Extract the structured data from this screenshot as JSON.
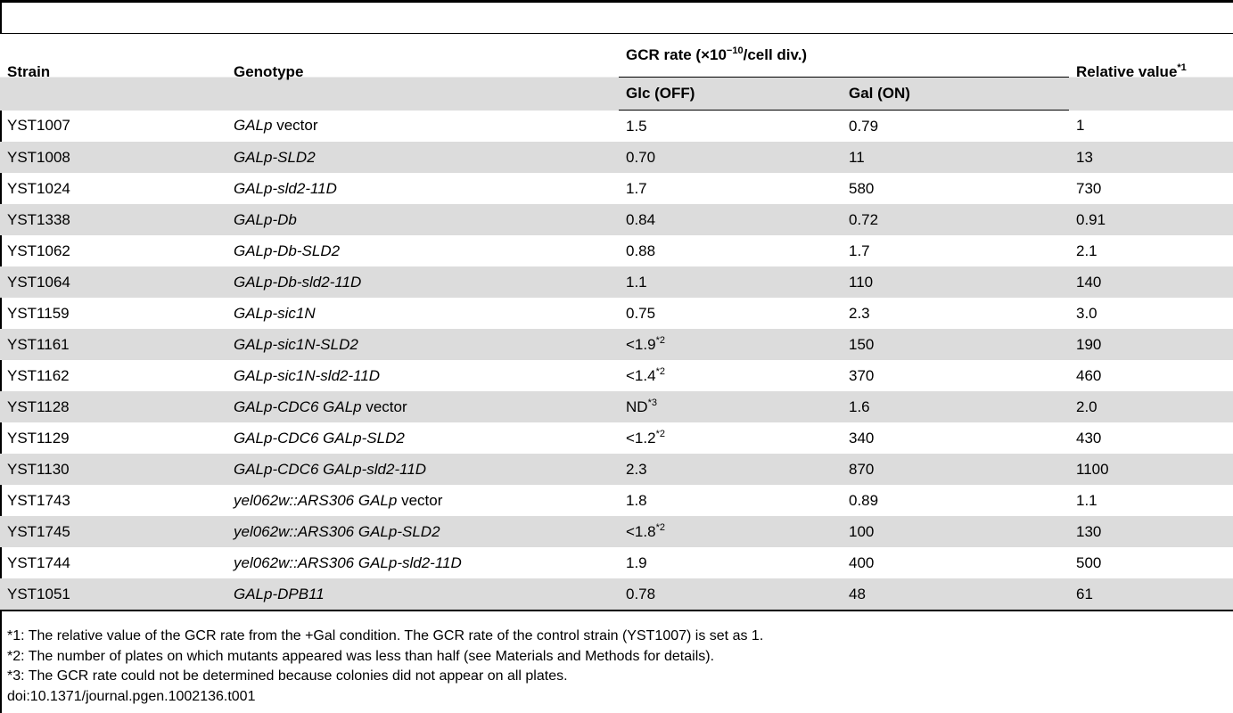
{
  "headers": {
    "strain": "Strain",
    "genotype": "Genotype",
    "gcr_rate": "GCR rate (×10",
    "gcr_rate_exp": "−10",
    "gcr_rate_unit": "/cell div.)",
    "relative": "Relative value",
    "relative_note": "*1",
    "glc": "Glc (OFF)",
    "gal": "Gal (ON)"
  },
  "rows": [
    {
      "strain": "YST1007",
      "geno_italic": "GALp",
      "geno_roman": " vector",
      "geno_italic2": "",
      "glc": "1.5",
      "glc_note": "",
      "gal": "0.79",
      "relative": "1"
    },
    {
      "strain": "YST1008",
      "geno_italic": "GALp-SLD2",
      "geno_roman": "",
      "geno_italic2": "",
      "glc": "0.70",
      "glc_note": "",
      "gal": "11",
      "relative": "13"
    },
    {
      "strain": "YST1024",
      "geno_italic": "GALp-sld2-11D",
      "geno_roman": "",
      "geno_italic2": "",
      "glc": "1.7",
      "glc_note": "",
      "gal": "580",
      "relative": "730"
    },
    {
      "strain": "YST1338",
      "geno_italic": "GALp-Db",
      "geno_roman": "",
      "geno_italic2": "",
      "glc": "0.84",
      "glc_note": "",
      "gal": "0.72",
      "relative": "0.91"
    },
    {
      "strain": "YST1062",
      "geno_italic": "GALp-Db-SLD2",
      "geno_roman": "",
      "geno_italic2": "",
      "glc": "0.88",
      "glc_note": "",
      "gal": "1.7",
      "relative": "2.1"
    },
    {
      "strain": "YST1064",
      "geno_italic": "GALp-Db-sld2-11D",
      "geno_roman": "",
      "geno_italic2": "",
      "glc": "1.1",
      "glc_note": "",
      "gal": "110",
      "relative": "140"
    },
    {
      "strain": "YST1159",
      "geno_italic": "GALp-sic1N",
      "geno_roman": "",
      "geno_italic2": "",
      "glc": "0.75",
      "glc_note": "",
      "gal": "2.3",
      "relative": "3.0"
    },
    {
      "strain": "YST1161",
      "geno_italic": "GALp-sic1N-SLD2",
      "geno_roman": "",
      "geno_italic2": "",
      "glc": "<1.9",
      "glc_note": "*2",
      "gal": "150",
      "relative": "190"
    },
    {
      "strain": "YST1162",
      "geno_italic": "GALp-sic1N-sld2-11D",
      "geno_roman": "",
      "geno_italic2": "",
      "glc": "<1.4",
      "glc_note": "*2",
      "gal": "370",
      "relative": "460"
    },
    {
      "strain": "YST1128",
      "geno_italic": "GALp-CDC6 GALp",
      "geno_roman": " vector",
      "geno_italic2": "",
      "glc": "ND",
      "glc_note": "*3",
      "gal": "1.6",
      "relative": "2.0"
    },
    {
      "strain": "YST1129",
      "geno_italic": "GALp-CDC6 GALp-SLD2",
      "geno_roman": "",
      "geno_italic2": "",
      "glc": "<1.2",
      "glc_note": "*2",
      "gal": "340",
      "relative": "430"
    },
    {
      "strain": "YST1130",
      "geno_italic": "GALp-CDC6 GALp-sld2-11D",
      "geno_roman": "",
      "geno_italic2": "",
      "glc": "2.3",
      "glc_note": "",
      "gal": "870",
      "relative": "1100"
    },
    {
      "strain": "YST1743",
      "geno_italic": "yel062w::ARS306 GALp",
      "geno_roman": " vector",
      "geno_italic2": "",
      "glc": "1.8",
      "glc_note": "",
      "gal": "0.89",
      "relative": "1.1"
    },
    {
      "strain": "YST1745",
      "geno_italic": "yel062w::ARS306 GALp-SLD2",
      "geno_roman": "",
      "geno_italic2": "",
      "glc": "<1.8",
      "glc_note": "*2",
      "gal": "100",
      "relative": "130"
    },
    {
      "strain": "YST1744",
      "geno_italic": "yel062w::ARS306 GALp-sld2-11D",
      "geno_roman": "",
      "geno_italic2": "",
      "glc": "1.9",
      "glc_note": "",
      "gal": "400",
      "relative": "500"
    },
    {
      "strain": "YST1051",
      "geno_italic": "GALp-DPB11",
      "geno_roman": "",
      "geno_italic2": "",
      "glc": "0.78",
      "glc_note": "",
      "gal": "48",
      "relative": "61"
    }
  ],
  "footnotes": [
    "*1: The relative value of the GCR rate from the +Gal condition. The GCR rate of the control strain (YST1007) is set as 1.",
    "*2: The number of plates on which mutants appeared was less than half (see Materials and Methods for details).",
    "*3: The GCR rate could not be determined because colonies did not appear on all plates."
  ],
  "doi": "doi:10.1371/journal.pgen.1002136.t001"
}
